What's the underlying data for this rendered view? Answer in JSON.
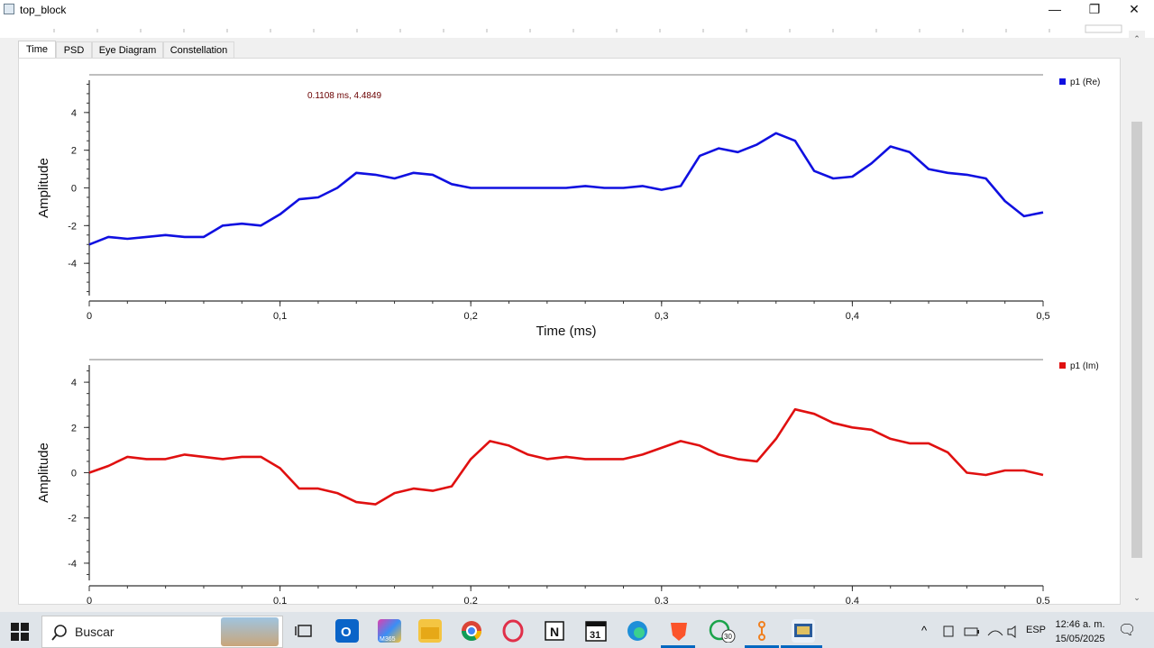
{
  "window": {
    "title": "top_block"
  },
  "tabs": [
    {
      "label": "Time"
    },
    {
      "label": "PSD"
    },
    {
      "label": "Eye Diagram"
    },
    {
      "label": "Constellation"
    }
  ],
  "plot_top": {
    "ylabel": "Amplitude",
    "xlabel": "Time (ms)",
    "legend": "p1 (Re)",
    "cursor_readout": "0.1108 ms, 4.4849",
    "color": "#1010e0"
  },
  "plot_bottom": {
    "ylabel": "Amplitude",
    "legend": "p1 (Im)",
    "color": "#e01010"
  },
  "chart_data": [
    {
      "type": "line",
      "xlabel": "Time (ms)",
      "ylabel": "Amplitude",
      "xlim": [
        0,
        0.5
      ],
      "ylim": [
        -6,
        6
      ],
      "x_ticks": [
        "0",
        "0,1",
        "0,2",
        "0,3",
        "0,4",
        "0,5"
      ],
      "y_ticks": [
        "4",
        "2",
        "0",
        "-2",
        "-4"
      ],
      "series": [
        {
          "name": "p1 (Re)",
          "x": [
            0,
            0.01,
            0.02,
            0.03,
            0.04,
            0.05,
            0.06,
            0.07,
            0.08,
            0.09,
            0.1,
            0.11,
            0.12,
            0.13,
            0.14,
            0.15,
            0.16,
            0.17,
            0.18,
            0.19,
            0.2,
            0.21,
            0.22,
            0.23,
            0.24,
            0.25,
            0.26,
            0.27,
            0.28,
            0.29,
            0.3,
            0.31,
            0.32,
            0.33,
            0.34,
            0.35,
            0.36,
            0.37,
            0.38,
            0.39,
            0.4,
            0.41,
            0.42,
            0.43,
            0.44,
            0.45,
            0.46,
            0.47,
            0.48,
            0.49,
            0.5
          ],
          "y": [
            -3.0,
            -2.6,
            -2.7,
            -2.6,
            -2.5,
            -2.6,
            -2.6,
            -2.0,
            -1.9,
            -2.0,
            -1.4,
            -0.6,
            -0.5,
            0.0,
            0.8,
            0.7,
            0.5,
            0.8,
            0.7,
            0.2,
            0.0,
            0.0,
            0.0,
            0.0,
            0.0,
            0.0,
            0.1,
            0.0,
            0.0,
            0.1,
            -0.1,
            0.1,
            1.7,
            2.1,
            1.9,
            2.3,
            2.9,
            2.5,
            0.9,
            0.5,
            0.6,
            1.3,
            2.2,
            1.9,
            1.0,
            0.8,
            0.7,
            0.5,
            -0.7,
            -1.5,
            -1.3
          ]
        }
      ]
    },
    {
      "type": "line",
      "ylabel": "Amplitude",
      "xlim": [
        0,
        0.5
      ],
      "ylim": [
        -5,
        5
      ],
      "x_ticks": [
        "0",
        "0,1",
        "0,2",
        "0,3",
        "0,4",
        "0,5"
      ],
      "y_ticks": [
        "4",
        "2",
        "0",
        "-2",
        "-4"
      ],
      "series": [
        {
          "name": "p1 (Im)",
          "x": [
            0,
            0.01,
            0.02,
            0.03,
            0.04,
            0.05,
            0.06,
            0.07,
            0.08,
            0.09,
            0.1,
            0.11,
            0.12,
            0.13,
            0.14,
            0.15,
            0.16,
            0.17,
            0.18,
            0.19,
            0.2,
            0.21,
            0.22,
            0.23,
            0.24,
            0.25,
            0.26,
            0.27,
            0.28,
            0.29,
            0.3,
            0.31,
            0.32,
            0.33,
            0.34,
            0.35,
            0.36,
            0.37,
            0.38,
            0.39,
            0.4,
            0.41,
            0.42,
            0.43,
            0.44,
            0.45,
            0.46,
            0.47,
            0.48,
            0.49,
            0.5
          ],
          "y": [
            0.0,
            0.3,
            0.7,
            0.6,
            0.6,
            0.8,
            0.7,
            0.6,
            0.7,
            0.7,
            0.2,
            -0.7,
            -0.7,
            -0.9,
            -1.3,
            -1.4,
            -0.9,
            -0.7,
            -0.8,
            -0.6,
            0.6,
            1.4,
            1.2,
            0.8,
            0.6,
            0.7,
            0.6,
            0.6,
            0.6,
            0.8,
            1.1,
            1.4,
            1.2,
            0.8,
            0.6,
            0.5,
            1.5,
            2.8,
            2.6,
            2.2,
            2.0,
            1.9,
            1.5,
            1.3,
            1.3,
            0.9,
            0.0,
            -0.1,
            0.1,
            0.1,
            -0.1
          ]
        }
      ]
    }
  ],
  "scrollbar": {
    "up": "⌃",
    "down": "⌄"
  },
  "taskbar": {
    "search_label": "Buscar",
    "language": "ESP",
    "time": "12:46 a. m.",
    "date": "15/05/2025",
    "whatsapp_badge": "30",
    "calendar_day": "31",
    "notion_letter": "N",
    "m365_label": "M365",
    "tray_expand": "^",
    "notification": "🗨"
  }
}
